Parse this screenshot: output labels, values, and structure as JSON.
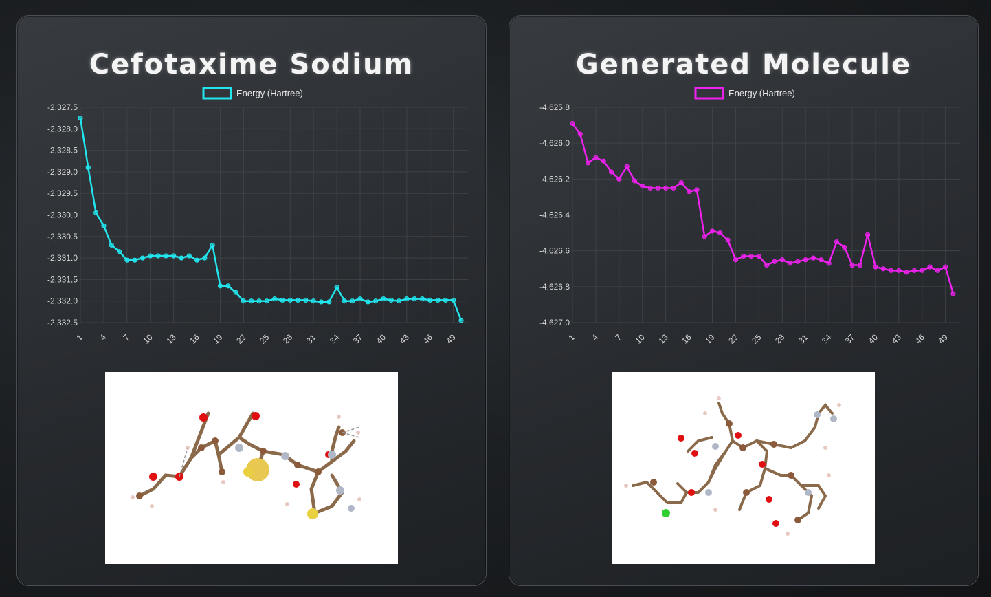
{
  "panels": [
    {
      "title": "Cefotaxime Sodium",
      "accent": "#22e5ee",
      "chart_data": {
        "type": "line",
        "legend": "Energy (Hartree)",
        "legend_position": "top-center",
        "grid": true,
        "x": [
          1,
          2,
          3,
          4,
          5,
          6,
          7,
          8,
          9,
          10,
          11,
          12,
          13,
          14,
          15,
          16,
          17,
          18,
          19,
          20,
          21,
          22,
          23,
          24,
          25,
          26,
          27,
          28,
          29,
          30,
          31,
          32,
          33,
          34,
          35,
          36,
          37,
          38,
          39,
          40,
          41,
          42,
          43,
          44,
          45,
          46,
          47,
          48,
          49,
          50
        ],
        "x_ticks": [
          "1",
          "4",
          "7",
          "10",
          "13",
          "16",
          "19",
          "22",
          "25",
          "28",
          "31",
          "34",
          "37",
          "40",
          "43",
          "46",
          "49"
        ],
        "y_ticks": [
          "-2,327.5",
          "-2,328.0",
          "-2,328.5",
          "-2,329.0",
          "-2,329.5",
          "-2,330.0",
          "-2,330.5",
          "-2,331.0",
          "-2,331.5",
          "-2,332.0",
          "-2,332.5"
        ],
        "ylim": [
          -2332.5,
          -2327.5
        ],
        "series": [
          {
            "name": "Energy (Hartree)",
            "values": [
              -2327.75,
              -2328.9,
              -2329.95,
              -2330.25,
              -2330.7,
              -2330.85,
              -2331.05,
              -2331.05,
              -2331.0,
              -2330.95,
              -2330.95,
              -2330.95,
              -2330.95,
              -2331.0,
              -2330.95,
              -2331.05,
              -2331.0,
              -2330.7,
              -2331.65,
              -2331.65,
              -2331.8,
              -2332.0,
              -2332.0,
              -2332.0,
              -2332.0,
              -2331.95,
              -2331.98,
              -2331.98,
              -2331.98,
              -2331.98,
              -2332.0,
              -2332.02,
              -2332.02,
              -2331.68,
              -2332.0,
              -2332.0,
              -2331.95,
              -2332.02,
              -2332.0,
              -2331.95,
              -2331.98,
              -2332.0,
              -2331.95,
              -2331.95,
              -2331.95,
              -2331.98,
              -2331.98,
              -2331.98,
              -2331.98,
              -2332.45
            ]
          }
        ]
      }
    },
    {
      "title": "Generated Molecule",
      "accent": "#ee22ee",
      "chart_data": {
        "type": "line",
        "legend": "Energy (Hartree)",
        "legend_position": "top-center",
        "grid": true,
        "x": [
          1,
          2,
          3,
          4,
          5,
          6,
          7,
          8,
          9,
          10,
          11,
          12,
          13,
          14,
          15,
          16,
          17,
          18,
          19,
          20,
          21,
          22,
          23,
          24,
          25,
          26,
          27,
          28,
          29,
          30,
          31,
          32,
          33,
          34,
          35,
          36,
          37,
          38,
          39,
          40,
          41,
          42,
          43,
          44,
          45,
          46,
          47,
          48,
          49,
          50
        ],
        "x_ticks": [
          "1",
          "4",
          "7",
          "10",
          "13",
          "16",
          "19",
          "22",
          "25",
          "28",
          "31",
          "34",
          "37",
          "40",
          "43",
          "46",
          "49"
        ],
        "y_ticks": [
          "-4,625.8",
          "-4,626.0",
          "-4,626.2",
          "-4,626.4",
          "-4,626.6",
          "-4,626.8",
          "-4,627.0"
        ],
        "ylim": [
          -4627.0,
          -4625.8
        ],
        "series": [
          {
            "name": "Energy (Hartree)",
            "values": [
              -4625.89,
              -4625.95,
              -4626.11,
              -4626.08,
              -4626.1,
              -4626.16,
              -4626.2,
              -4626.13,
              -4626.21,
              -4626.24,
              -4626.25,
              -4626.25,
              -4626.25,
              -4626.25,
              -4626.22,
              -4626.27,
              -4626.26,
              -4626.52,
              -4626.49,
              -4626.5,
              -4626.54,
              -4626.65,
              -4626.63,
              -4626.63,
              -4626.63,
              -4626.68,
              -4626.66,
              -4626.65,
              -4626.67,
              -4626.66,
              -4626.65,
              -4626.64,
              -4626.65,
              -4626.67,
              -4626.55,
              -4626.58,
              -4626.68,
              -4626.68,
              -4626.51,
              -4626.69,
              -4626.7,
              -4626.71,
              -4626.71,
              -4626.72,
              -4626.71,
              -4626.71,
              -4626.69,
              -4626.71,
              -4626.69,
              -4626.84
            ]
          }
        ]
      }
    }
  ]
}
